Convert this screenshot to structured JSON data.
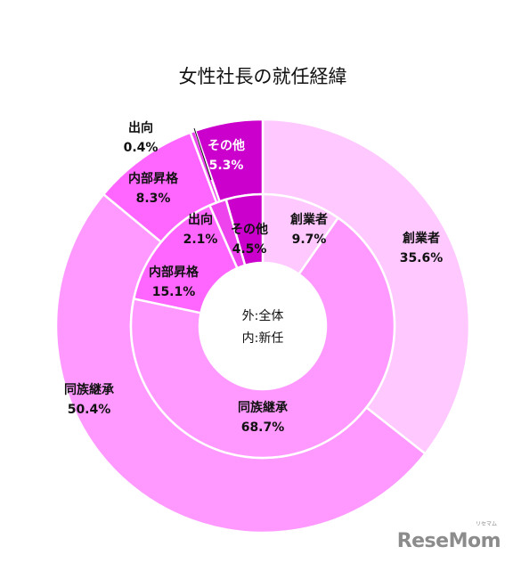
{
  "chart_data": {
    "type": "donut",
    "title": "女性社長の就任経緯",
    "center_label_lines": [
      "外:全体",
      "内:新任"
    ],
    "rings": [
      {
        "ring": "outer",
        "name": "全体",
        "slices": [
          {
            "label": "創業者",
            "value": 35.6,
            "value_label": "35.6%",
            "color": "#ffc8ff"
          },
          {
            "label": "同族継承",
            "value": 50.4,
            "value_label": "50.4%",
            "color": "#ff99ff"
          },
          {
            "label": "内部昇格",
            "value": 8.3,
            "value_label": "8.3%",
            "color": "#ff66ff"
          },
          {
            "label": "出向",
            "value": 0.4,
            "value_label": "0.4%",
            "color": "#ee44ee"
          },
          {
            "label": "その他",
            "value": 5.3,
            "value_label": "5.3%",
            "color": "#cc00cc"
          }
        ]
      },
      {
        "ring": "inner",
        "name": "新任",
        "slices": [
          {
            "label": "創業者",
            "value": 9.7,
            "value_label": "9.7%",
            "color": "#ffc8ff"
          },
          {
            "label": "同族継承",
            "value": 68.7,
            "value_label": "68.7%",
            "color": "#ff99ff"
          },
          {
            "label": "内部昇格",
            "value": 15.1,
            "value_label": "15.1%",
            "color": "#ff66ff"
          },
          {
            "label": "出向",
            "value": 2.1,
            "value_label": "2.1%",
            "color": "#ee44ee"
          },
          {
            "label": "その他",
            "value": 4.5,
            "value_label": "4.5%",
            "color": "#cc00cc"
          }
        ]
      }
    ]
  },
  "watermark": {
    "logo_text": "ReseMom",
    "logo_sub": "リセマム"
  }
}
